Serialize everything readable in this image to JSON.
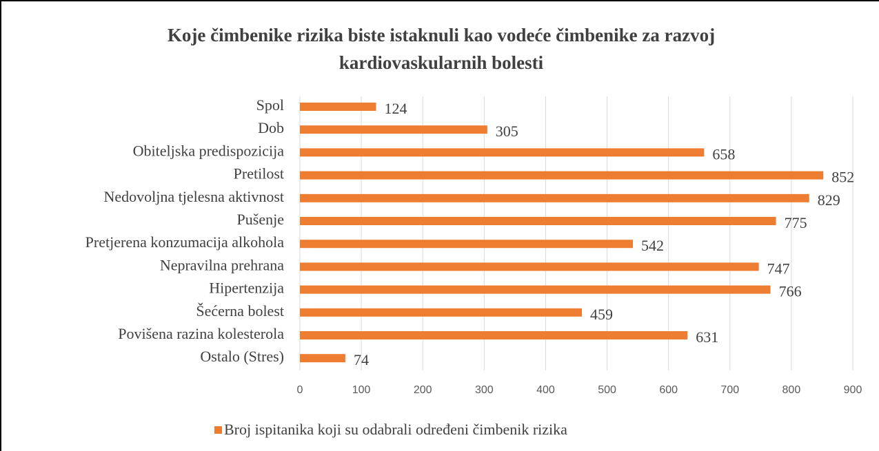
{
  "chart_data": {
    "type": "hbar",
    "title": [
      "Koje čimbenike rizika biste istaknuli kao vodeće čimbenike za razvoj",
      "kardiovaskularnih bolesti"
    ],
    "categories": [
      "Spol",
      "Dob",
      "Obiteljska predispozicija",
      "Pretilost",
      "Nedovoljna tjelesna aktivnost",
      "Pušenje",
      "Pretjerena konzumacija alkohola",
      "Nepravilna prehrana",
      "Hipertenzija",
      "Šećerna bolest",
      "Povišena razina kolesterola",
      "Ostalo (Stres)"
    ],
    "series": [
      {
        "name": "Broj ispitanika koji su odabrali određeni čimbenik rizika",
        "color": "#ed7d31",
        "values": [
          124,
          305,
          658,
          852,
          829,
          775,
          542,
          747,
          766,
          459,
          631,
          74
        ]
      }
    ],
    "xlim": [
      0,
      900
    ],
    "xticks": [
      0,
      100,
      200,
      300,
      400,
      500,
      600,
      700,
      800,
      900
    ],
    "grid": true,
    "legend": "bottom"
  }
}
